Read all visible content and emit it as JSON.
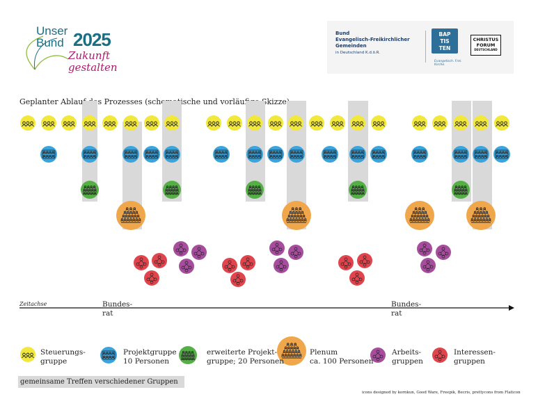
{
  "logo_left": {
    "line1": "Unser",
    "line2": "Bund",
    "year": "2025",
    "tagline1": "Zukunft",
    "tagline2": "gestalten"
  },
  "logo_right": {
    "org_line1": "Bund",
    "org_line2": "Evangelisch-Freikirchlicher",
    "org_line3": "Gemeinden",
    "org_line4": "in Deutschland K.d.ö.R.",
    "baptisten": [
      "BAP",
      "TIS",
      "TEN"
    ],
    "baptisten_sub": "Evangelisch. Frei. Kirche.",
    "cf_line1": "CHRISTUS",
    "cf_line2": "FORUM",
    "cf_line3": "DEUTSCHLAND"
  },
  "title": "Geplanter Ablauf des Prozesses (schematische und vorläufige Skizze)",
  "timeline": {
    "label": "Zeitachse",
    "bundesrat_1a": "Bundes-",
    "bundesrat_1b": "rat",
    "bundesrat_2a": "Bundes-",
    "bundesrat_2b": "rat"
  },
  "colors": {
    "steuerung": "#f2e83b",
    "projekt": "#3aa4dd",
    "erweitert": "#56ae47",
    "plenum": "#f0a64a",
    "arbeit": "#a64d9d",
    "interesse": "#e0454d",
    "shade": "#d9d9d9"
  },
  "legend": {
    "steuerung_a": "Steuerungs-",
    "steuerung_b": "gruppe",
    "projekt_a": "Projektgruppe",
    "projekt_b": "10 Personen",
    "erweitert_a": "erweiterte Projekt-",
    "erweitert_b": "gruppe; 20 Personen",
    "plenum_a": "Plenum",
    "plenum_b": "ca. 100 Personen",
    "arbeit_a": "Arbeits-",
    "arbeit_b": "gruppen",
    "interesse_a": "Interessen-",
    "interesse_b": "gruppen",
    "joint_meetings": "gemeinsame Treffen verschiedener Gruppen"
  },
  "credit": "icons designed by kornkun, Good Ware, Freepik, Becris, prettycons from Flaticon"
}
